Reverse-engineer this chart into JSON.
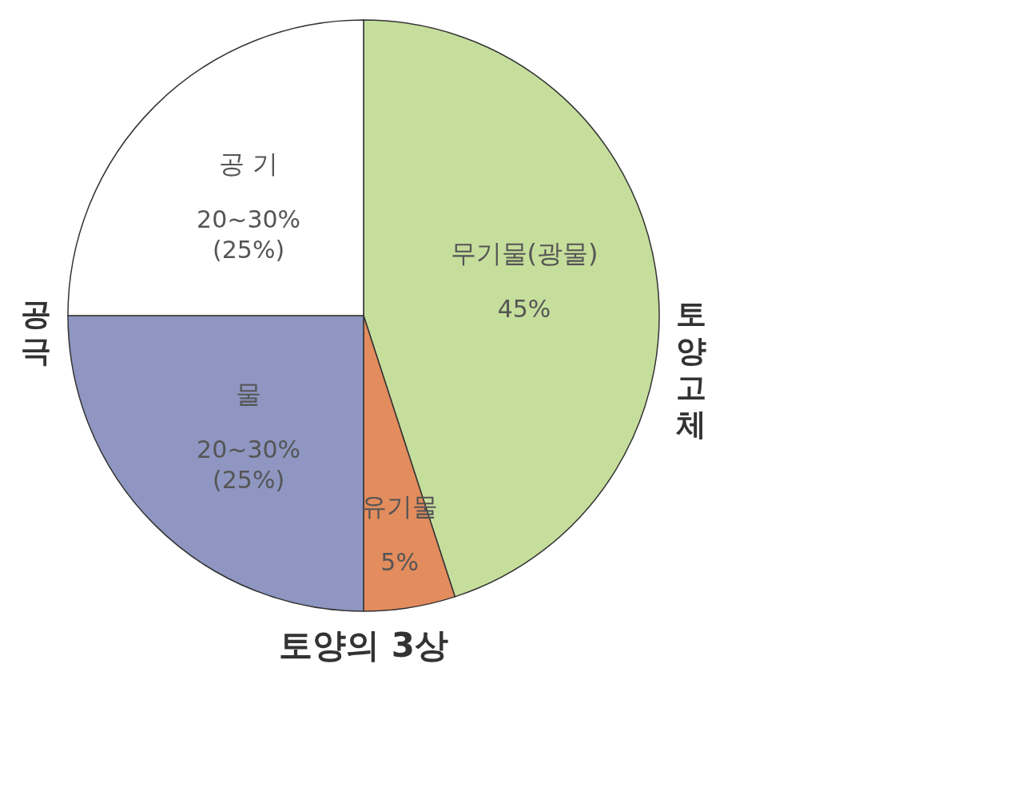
{
  "chart_data": {
    "type": "pie",
    "title": "토양의 3상",
    "categories": [
      "무기물(광물)",
      "유기물",
      "물",
      "공 기"
    ],
    "values": [
      45,
      5,
      25,
      25
    ],
    "colors": [
      "#c6de9c",
      "#e38c5e",
      "#8e96c1",
      "#ffffff"
    ],
    "value_labels": [
      "45%",
      "5%",
      "20~30%\n(25%)",
      "20~30%\n(25%)"
    ],
    "annotations": [
      "공극",
      "토양고체"
    ],
    "legend": false
  }
}
